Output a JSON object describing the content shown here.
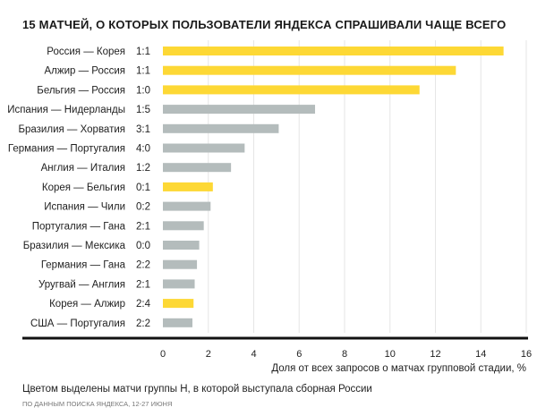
{
  "chart_data": {
    "type": "bar",
    "orientation": "horizontal",
    "title": "15 МАТЧЕЙ, О КОТОРЫХ ПОЛЬЗОВАТЕЛИ ЯНДЕКСА СПРАШИВАЛИ ЧАЩЕ ВСЕГО",
    "categories": [
      "Россия — Корея",
      "Алжир — Россия",
      "Бельгия — Россия",
      "Испания — Нидерланды",
      "Бразилия — Хорватия",
      "Германия — Португалия",
      "Англия — Италия",
      "Корея — Бельгия",
      "Испания — Чили",
      "Португалия — Гана",
      "Бразилия — Мексика",
      "Германия — Гана",
      "Уругвай — Англия",
      "Корея — Алжир",
      "США — Португалия"
    ],
    "scores": [
      "1:1",
      "1:1",
      "1:0",
      "1:5",
      "3:1",
      "4:0",
      "1:2",
      "0:1",
      "0:2",
      "2:1",
      "0:0",
      "2:2",
      "2:1",
      "2:4",
      "2:2"
    ],
    "values": [
      15.0,
      12.9,
      11.3,
      6.7,
      5.1,
      3.6,
      3.0,
      2.2,
      2.1,
      1.8,
      1.6,
      1.5,
      1.4,
      1.35,
      1.3
    ],
    "highlight": [
      true,
      true,
      true,
      false,
      false,
      false,
      false,
      true,
      false,
      false,
      false,
      false,
      false,
      true,
      false
    ],
    "xlabel": "Доля от всех запросов о матчах групповой стадии, %",
    "ylabel": "",
    "xlim": [
      0,
      16
    ],
    "xticks": [
      "0",
      "2",
      "4",
      "6",
      "8",
      "10",
      "12",
      "14",
      "16"
    ],
    "grid": true,
    "colors": {
      "highlight": "#fdd835",
      "other": "#b4bcbc",
      "grid": "#e6e6e6",
      "axis": "#111111"
    }
  },
  "note": "Цветом выделены матчи группы H, в которой выступала сборная России",
  "source": "ПО ДАННЫМ ПОИСКА ЯНДЕКСА, 12-27 ИЮНЯ"
}
